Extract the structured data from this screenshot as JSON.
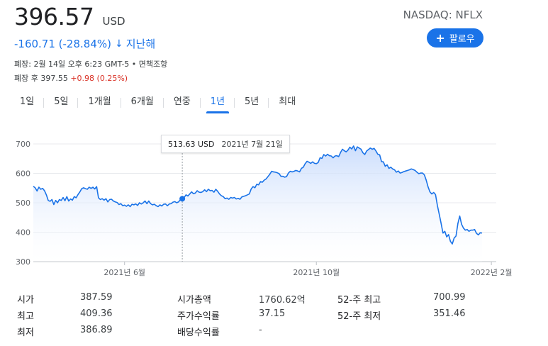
{
  "header": {
    "price": "396.57",
    "currency": "USD",
    "ticker": "NASDAQ: NFLX",
    "follow_label": "팔로우",
    "change": "-160.71 (-28.84%)",
    "change_arrow": "↓",
    "change_period": "지난해",
    "close_info": "폐장: 2월 14일 오후 6:23 GMT-5 • 면책조항",
    "after_hours_label": "폐장 후 397.55",
    "after_hours_change": "+0.98 (0.25%)"
  },
  "tabs": [
    {
      "label": "1일",
      "active": false
    },
    {
      "label": "5일",
      "active": false
    },
    {
      "label": "1개월",
      "active": false
    },
    {
      "label": "6개월",
      "active": false
    },
    {
      "label": "연중",
      "active": false
    },
    {
      "label": "1년",
      "active": true
    },
    {
      "label": "5년",
      "active": false
    },
    {
      "label": "최대",
      "active": false
    }
  ],
  "tooltip": {
    "price": "513.63 USD",
    "date": "2021년 7월 21일"
  },
  "chart_data": {
    "type": "area",
    "title": "",
    "y_ticks": [
      "700",
      "600",
      "500",
      "400",
      "300"
    ],
    "ylim": [
      300,
      700
    ],
    "x_ticks": [
      "2021년 6월",
      "2021년 10월",
      "2022년 2월"
    ],
    "grid": true,
    "line_color": "#1a73e8",
    "fill_color": "#e8f0fe",
    "series": [
      {
        "values": [
          556,
          551,
          540,
          553,
          546,
          549,
          541,
          527,
          508,
          505,
          511,
          494,
          508,
          500,
          511,
          508,
          518,
          507,
          521,
          506,
          513,
          509,
          521,
          517,
          528,
          537,
          548,
          551,
          548,
          546,
          553,
          549,
          553,
          547,
          555,
          517,
          511,
          514,
          509,
          514,
          503,
          511,
          512,
          506,
          503,
          501,
          494,
          497,
          490,
          492,
          488,
          493,
          487,
          495,
          493,
          496,
          491,
          500,
          496,
          500,
          506,
          497,
          506,
          497,
          493,
          495,
          490,
          487,
          493,
          489,
          495,
          496,
          490,
          496,
          497,
          502,
          504,
          500,
          503,
          511,
          512,
          518,
          527,
          523,
          530,
          537,
          531,
          533,
          541,
          536,
          535,
          538,
          544,
          538,
          546,
          541,
          542,
          536,
          546,
          539,
          530,
          524,
          521,
          514,
          516,
          512,
          518,
          516,
          518,
          513,
          515,
          512,
          520,
          522,
          524,
          527,
          530,
          547,
          555,
          551,
          563,
          561,
          572,
          570,
          577,
          581,
          589,
          597,
          607,
          605,
          604,
          602,
          599,
          590,
          590,
          587,
          589,
          601,
          607,
          605,
          607,
          610,
          608,
          605,
          617,
          621,
          633,
          641,
          638,
          634,
          639,
          634,
          633,
          637,
          653,
          651,
          664,
          659,
          665,
          660,
          659,
          653,
          659,
          660,
          657,
          671,
          682,
          677,
          673,
          679,
          689,
          683,
          693,
          677,
          690,
          686,
          682,
          670,
          664,
          676,
          681,
          686,
          682,
          685,
          676,
          665,
          663,
          640,
          639,
          624,
          629,
          617,
          621,
          615,
          612,
          604,
          608,
          601,
          603,
          606,
          608,
          610,
          612,
          615,
          613,
          610,
          604,
          599,
          601,
          601,
          595,
          577,
          554,
          537,
          530,
          535,
          528,
          491,
          461,
          430,
          397,
          403,
          384,
          392,
          369,
          360,
          380,
          387,
          429,
          455,
          427,
          414,
          407,
          409,
          403,
          407,
          407,
          409,
          396,
          391,
          398,
          397
        ]
      }
    ],
    "hover_index": 80,
    "hover_value": 513.63
  },
  "stats": {
    "col1": [
      {
        "label": "시가",
        "value": "387.59"
      },
      {
        "label": "최고",
        "value": "409.36"
      },
      {
        "label": "최저",
        "value": "386.89"
      }
    ],
    "col2": [
      {
        "label": "시가총액",
        "value": "1760.62억"
      },
      {
        "label": "주가수익률",
        "value": "37.15"
      },
      {
        "label": "배당수익률",
        "value": "-"
      }
    ],
    "col3": [
      {
        "label": "52-주 최고",
        "value": "700.99"
      },
      {
        "label": "52-주 최저",
        "value": "351.46"
      }
    ]
  }
}
